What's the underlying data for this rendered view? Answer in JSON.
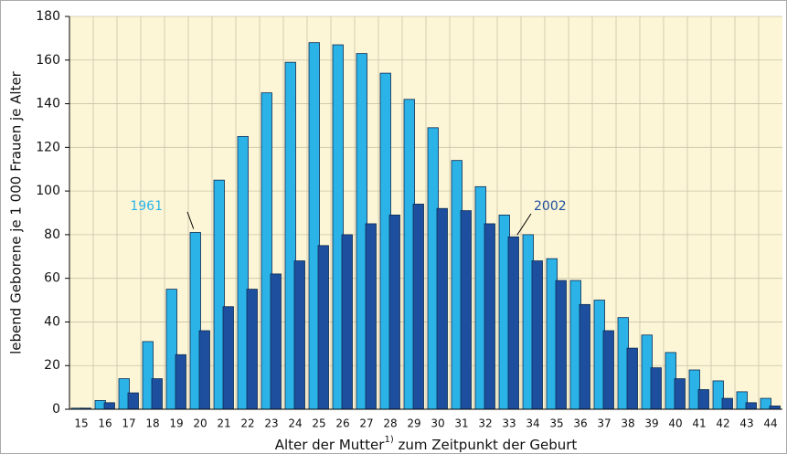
{
  "chart_data": {
    "type": "bar",
    "categories": [
      "15",
      "16",
      "17",
      "18",
      "19",
      "20",
      "21",
      "22",
      "23",
      "24",
      "25",
      "26",
      "27",
      "28",
      "29",
      "30",
      "31",
      "32",
      "33",
      "34",
      "35",
      "36",
      "37",
      "38",
      "39",
      "40",
      "41",
      "42",
      "43",
      "44"
    ],
    "series": [
      {
        "name": "1961",
        "color": "#2bb3e8",
        "values": [
          0.5,
          4,
          14,
          31,
          55,
          81,
          105,
          125,
          145,
          159,
          168,
          167,
          163,
          154,
          142,
          129,
          114,
          102,
          89,
          80,
          69,
          59,
          50,
          42,
          34,
          26,
          18,
          13,
          8,
          5
        ]
      },
      {
        "name": "2002",
        "color": "#1d4f9e",
        "values": [
          0.5,
          3,
          7.5,
          14,
          25,
          36,
          47,
          55,
          62,
          68,
          75,
          80,
          85,
          89,
          94,
          92,
          91,
          85,
          79,
          68,
          59,
          48,
          36,
          28,
          19,
          14,
          9,
          5,
          3,
          1.5
        ]
      }
    ],
    "y_label": "lebend Geborene je 1 000 Frauen je Alter",
    "x_label": [
      "Alter der Mutter",
      "1)",
      " zum Zeitpunkt der Geburt"
    ],
    "ylim": [
      0,
      180
    ],
    "yticks": [
      0,
      20,
      40,
      60,
      80,
      100,
      120,
      140,
      160,
      180
    ],
    "grid": true
  }
}
